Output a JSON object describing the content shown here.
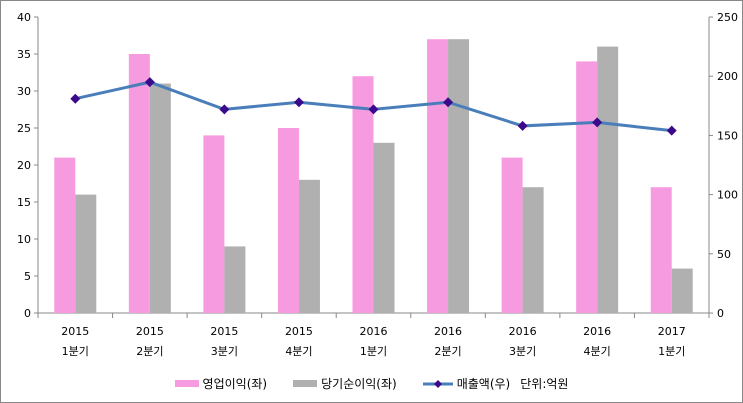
{
  "chart_data": {
    "type": "bar",
    "categories": [
      [
        "2015",
        "1분기"
      ],
      [
        "2015",
        "2분기"
      ],
      [
        "2015",
        "3분기"
      ],
      [
        "2015",
        "4분기"
      ],
      [
        "2016",
        "1분기"
      ],
      [
        "2016",
        "2분기"
      ],
      [
        "2016",
        "3분기"
      ],
      [
        "2016",
        "4분기"
      ],
      [
        "2017",
        "1분기"
      ]
    ],
    "series": [
      {
        "name": "영업이익(좌)",
        "type": "bar",
        "axis": "left",
        "color": "#F79BE0",
        "values": [
          21,
          35,
          24,
          25,
          32,
          37,
          21,
          34,
          17
        ]
      },
      {
        "name": "당기순이익(좌)",
        "type": "bar",
        "axis": "left",
        "color": "#B0B0B0",
        "values": [
          16,
          31,
          9,
          18,
          23,
          37,
          17,
          36,
          6
        ]
      },
      {
        "name": "매출액(우)",
        "type": "line",
        "axis": "right",
        "color": "#4A7EBB",
        "marker_color": "#3B0A8C",
        "values": [
          181,
          195,
          172,
          178,
          172,
          178,
          158,
          161,
          154
        ]
      }
    ],
    "y_left": {
      "range": [
        0,
        40
      ],
      "ticks": [
        0,
        5,
        10,
        15,
        20,
        25,
        30,
        35,
        40
      ]
    },
    "y_right": {
      "range": [
        0,
        250
      ],
      "ticks": [
        0,
        50,
        100,
        150,
        200,
        250
      ]
    },
    "unit_note": "단위:억원",
    "grid": false,
    "legend": "bottom"
  }
}
